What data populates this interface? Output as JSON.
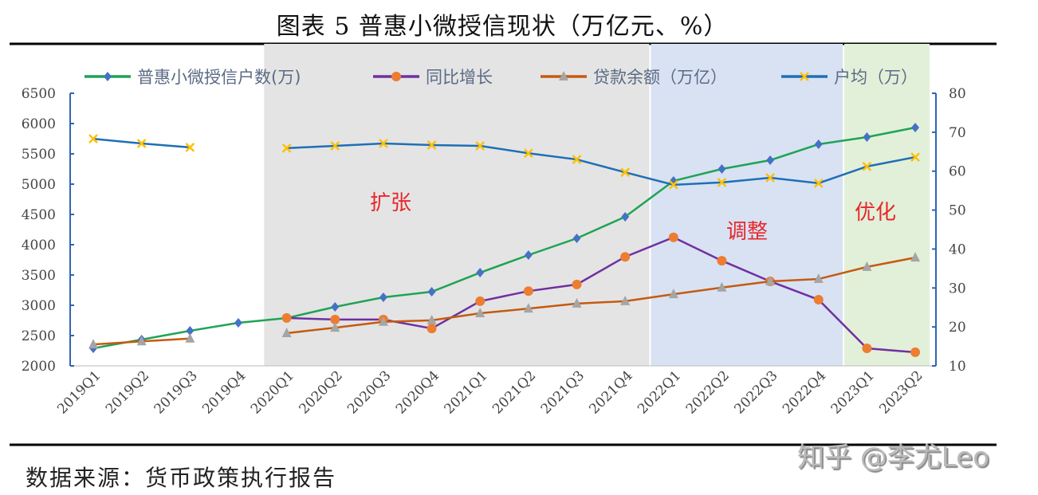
{
  "title": "图表 5 普惠小微授信现状（万亿元、%）",
  "source": "数据来源：货币政策执行报告",
  "watermark": "知乎 @李尤Leo",
  "chart_data": {
    "type": "line",
    "categories": [
      "2019Q1",
      "2019Q2",
      "2019Q3",
      "2019Q4",
      "2020Q1",
      "2020Q2",
      "2020Q3",
      "2020Q4",
      "2021Q1",
      "2021Q2",
      "2021Q3",
      "2021Q4",
      "2022Q1",
      "2022Q2",
      "2022Q3",
      "2022Q4",
      "2023Q1",
      "2023Q2"
    ],
    "y_left": {
      "range": [
        2000,
        6500
      ],
      "ticks": [
        2000,
        2500,
        3000,
        3500,
        4000,
        4500,
        5000,
        5500,
        6000,
        6500
      ]
    },
    "y_right": {
      "range": [
        10,
        80
      ],
      "ticks": [
        10,
        20,
        30,
        40,
        50,
        60,
        70,
        80
      ]
    },
    "legend_position": "top",
    "grid": false,
    "series": [
      {
        "name": "普惠小微授信户数(万)",
        "axis": "left",
        "color": "#1fa355",
        "marker": "diamond",
        "marker_color": "#4472c4",
        "values": [
          2290,
          2434,
          2579,
          2711,
          2789,
          2974,
          3132,
          3224,
          3539,
          3829,
          4105,
          4461,
          5053,
          5250,
          5395,
          5658,
          5776,
          5934
        ]
      },
      {
        "name": "同比增长",
        "axis": "right",
        "color": "#7030a0",
        "marker": "circle",
        "marker_color": "#ed7d31",
        "values": [
          null,
          null,
          null,
          null,
          22.3,
          21.9,
          21.9,
          19.6,
          26.6,
          29.2,
          30.9,
          38.0,
          43.0,
          37.0,
          31.7,
          27.0,
          14.5,
          13.5
        ]
      },
      {
        "name": "贷款余额（万亿）",
        "axis": "right",
        "color": "#c55a11",
        "marker": "triangle",
        "marker_color": "#a5a5a5",
        "values": [
          15.5,
          16.3,
          17.0,
          null,
          18.4,
          19.8,
          21.3,
          21.7,
          23.5,
          24.7,
          26.0,
          26.6,
          28.4,
          30.1,
          31.7,
          32.3,
          35.4,
          37.8
        ]
      },
      {
        "name": "户均（万）",
        "axis": "right",
        "color": "#1f6fb5",
        "marker": "x",
        "marker_color": "#ffc000",
        "values": [
          68.3,
          67.1,
          66.1,
          null,
          65.9,
          66.5,
          67.1,
          66.7,
          66.5,
          64.6,
          63.0,
          59.7,
          56.5,
          57.1,
          58.3,
          56.9,
          61.2,
          63.6
        ]
      }
    ],
    "phases": [
      {
        "label": "扩张",
        "from": "2020Q1",
        "to": "2021Q4",
        "color": "#e4e4e4"
      },
      {
        "label": "调整",
        "from": "2022Q1",
        "to": "2022Q4",
        "color": "#d8e2f3"
      },
      {
        "label": "优化",
        "from": "2023Q1",
        "to": "2023Q2",
        "color": "#e2f0d9"
      }
    ],
    "annotation_color": "#e8272a",
    "axis_color": "#2e66b0",
    "text_color": "#5b6b85"
  }
}
